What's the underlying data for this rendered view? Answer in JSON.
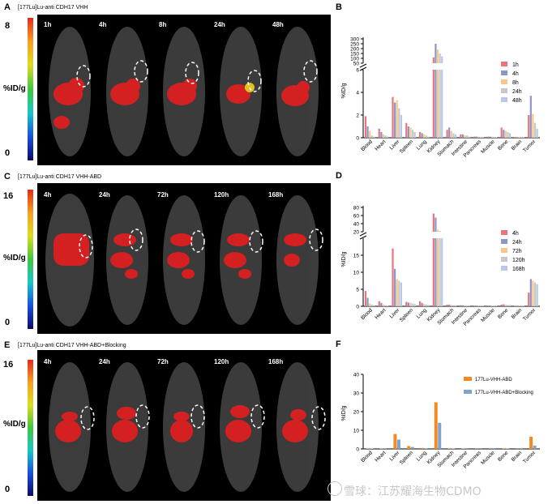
{
  "panels": {
    "A": {
      "letter": "A",
      "title": "[177Lu]Lu-anti CDH17 VHH",
      "scale_max": "8",
      "scale_min": "0",
      "unit": "%ID/g",
      "timepoints": [
        "1h",
        "4h",
        "8h",
        "24h",
        "48h"
      ]
    },
    "C": {
      "letter": "C",
      "title": "[177Lu]Lu-anti CDH17 VHH-ABD",
      "scale_max": "16",
      "scale_min": "0",
      "unit": "%ID/g",
      "timepoints": [
        "4h",
        "24h",
        "72h",
        "120h",
        "168h"
      ]
    },
    "E": {
      "letter": "E",
      "title": "[177Lu]Lu-anti CDH17 VHH-ABD+Blocking",
      "scale_max": "16",
      "scale_min": "0",
      "unit": "%ID/g",
      "timepoints": [
        "4h",
        "24h",
        "72h",
        "120h",
        "168h"
      ]
    }
  },
  "colors": {
    "c1": "#e8747c",
    "c2": "#8c95c8",
    "c3": "#f5c98a",
    "c4": "#c8c8c8",
    "c5": "#b8c8e8",
    "orange": "#f08a24",
    "steel": "#7fa3cc"
  },
  "chart_data": [
    {
      "letter": "B",
      "type": "bar",
      "ylabel": "%ID/g",
      "categories": [
        "Blood",
        "Heart",
        "Liver",
        "Spleen",
        "Lung",
        "Kidney",
        "Stomach",
        "Intestine",
        "Pancreas",
        "Muscle",
        "Bone",
        "Brain",
        "Tumor"
      ],
      "lower_ticks": [
        "0",
        "2",
        "4",
        "6"
      ],
      "upper_ticks": [
        "50",
        "100",
        "150",
        "200",
        "250",
        "300"
      ],
      "break": {
        "lower": [
          0,
          6
        ],
        "upper": [
          50,
          300
        ]
      },
      "series": [
        {
          "name": "1h",
          "values": [
            1.9,
            0.8,
            3.6,
            1.3,
            0.5,
            110,
            0.7,
            0.3,
            0.1,
            0.1,
            0.9,
            0.05,
            2.0
          ]
        },
        {
          "name": "4h",
          "values": [
            1.0,
            0.5,
            3.1,
            1.0,
            0.4,
            250,
            0.9,
            0.3,
            0.1,
            0.1,
            0.7,
            0.05,
            3.7
          ]
        },
        {
          "name": "8h",
          "values": [
            0.6,
            0.3,
            3.3,
            0.9,
            0.3,
            190,
            0.6,
            0.2,
            0.1,
            0.1,
            0.6,
            0.05,
            2.1
          ]
        },
        {
          "name": "24h",
          "values": [
            0.2,
            0.2,
            2.6,
            0.7,
            0.2,
            150,
            0.4,
            0.2,
            0.05,
            0.05,
            0.5,
            0.03,
            1.3
          ]
        },
        {
          "name": "48h",
          "values": [
            0.1,
            0.1,
            2.0,
            0.5,
            0.1,
            120,
            0.3,
            0.1,
            0.05,
            0.05,
            0.4,
            0.03,
            0.8
          ]
        }
      ]
    },
    {
      "letter": "D",
      "type": "bar",
      "ylabel": "%ID/g",
      "categories": [
        "Blood",
        "Heart",
        "Liver",
        "Spleen",
        "Lung",
        "Kidney",
        "Stomach",
        "Intestine",
        "Pancreas",
        "Muscle",
        "Bone",
        "Brain",
        "Tumor"
      ],
      "lower_ticks": [
        "0",
        "5",
        "10",
        "15"
      ],
      "upper_ticks": [
        "20",
        "40",
        "60",
        "80"
      ],
      "break": {
        "lower": [
          0,
          20
        ],
        "upper": [
          20,
          80
        ]
      },
      "series": [
        {
          "name": "4h",
          "values": [
            4.5,
            1.5,
            17.0,
            1.3,
            1.5,
            65,
            0.5,
            0.3,
            0.2,
            0.2,
            0.5,
            0.1,
            4.0
          ]
        },
        {
          "name": "24h",
          "values": [
            2.5,
            1.0,
            11.0,
            1.1,
            1.0,
            55,
            0.5,
            0.3,
            0.2,
            0.2,
            0.6,
            0.1,
            8.0
          ]
        },
        {
          "name": "72h",
          "values": [
            0.8,
            0.5,
            8.0,
            1.0,
            0.7,
            25,
            0.4,
            0.2,
            0.1,
            0.1,
            0.5,
            0.1,
            7.5
          ]
        },
        {
          "name": "120h",
          "values": [
            0.5,
            0.3,
            7.5,
            0.8,
            0.5,
            22,
            0.3,
            0.2,
            0.1,
            0.1,
            0.4,
            0.1,
            7.0
          ]
        },
        {
          "name": "168h",
          "values": [
            0.3,
            0.2,
            7.0,
            0.7,
            0.4,
            20,
            0.3,
            0.2,
            0.1,
            0.1,
            0.4,
            0.1,
            6.5
          ]
        }
      ]
    },
    {
      "letter": "F",
      "type": "bar",
      "ylabel": "%ID/g",
      "categories": [
        "Blood",
        "Heart",
        "Liver",
        "Spleen",
        "Lung",
        "Kidney",
        "Stomach",
        "Intestine",
        "Pancreas",
        "Muscle",
        "Bone",
        "Brain",
        "Tumor"
      ],
      "ylim": [
        0,
        40
      ],
      "ticks": [
        "0",
        "10",
        "20",
        "30",
        "40"
      ],
      "series": [
        {
          "name": "177Lu-VHH-ABD",
          "values": [
            0.3,
            0.2,
            8.0,
            1.5,
            0.5,
            25.0,
            0.3,
            0.2,
            0.1,
            0.1,
            0.3,
            0.1,
            6.5
          ]
        },
        {
          "name": "177Lu-VHH-ABD+Blocking",
          "values": [
            0.2,
            0.1,
            5.0,
            1.0,
            0.3,
            14.0,
            0.2,
            0.1,
            0.1,
            0.1,
            0.2,
            0.1,
            1.8
          ]
        }
      ]
    }
  ],
  "watermark": "雪球：江苏耀海生物CDMO"
}
